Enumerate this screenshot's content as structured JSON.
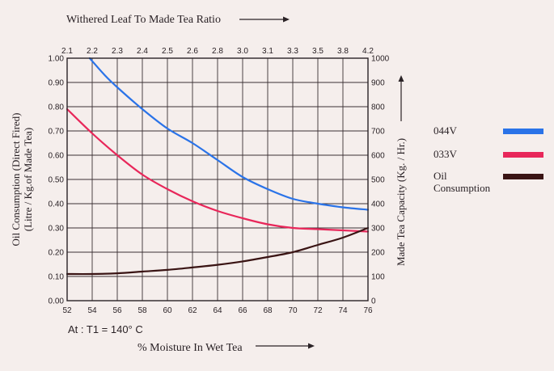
{
  "chart_data": {
    "type": "line",
    "top_axis": {
      "title": "Withered Leaf To Made Tea Ratio",
      "ticks": [
        "2.1",
        "2.2",
        "2.3",
        "2.4",
        "2.5",
        "2.6",
        "2.8",
        "3.0",
        "3.1",
        "3.3",
        "3.5",
        "3.8",
        "4.2"
      ]
    },
    "x_axis": {
      "title": "% Moisture In Wet Tea",
      "range": [
        52,
        76
      ],
      "ticks": [
        "52",
        "54",
        "56",
        "58",
        "60",
        "62",
        "64",
        "66",
        "68",
        "70",
        "72",
        "74",
        "76"
      ]
    },
    "y_left": {
      "title_line1": "Oil Consumption (Direct Fired)",
      "title_line2": "(Litre / Kg.of Made Tea)",
      "range": [
        0,
        1
      ],
      "ticks": [
        "0.00",
        "0.10",
        "0.20",
        "0.30",
        "0.40",
        "0.50",
        "0.60",
        "0.70",
        "0.80",
        "0.90",
        "1.00"
      ]
    },
    "y_right": {
      "title": "Made Tea Capacity (Kg. / Hr.)",
      "range": [
        0,
        1000
      ],
      "ticks": [
        "0",
        "100",
        "200",
        "300",
        "400",
        "500",
        "600",
        "700",
        "800",
        "900",
        "1000"
      ]
    },
    "series": [
      {
        "name": "044V",
        "axis": "right",
        "color": "#2a73e8",
        "x": [
          53.8,
          55,
          56,
          58,
          60,
          62,
          64,
          66,
          68,
          70,
          72,
          74,
          76
        ],
        "y": [
          1000,
          930,
          880,
          790,
          710,
          650,
          580,
          510,
          460,
          420,
          400,
          385,
          375
        ]
      },
      {
        "name": "033V",
        "axis": "right",
        "color": "#e8275a",
        "x": [
          52,
          54,
          56,
          58,
          60,
          62,
          64,
          66,
          68,
          70,
          72,
          74,
          76
        ],
        "y": [
          790,
          690,
          600,
          520,
          460,
          410,
          370,
          340,
          315,
          300,
          295,
          290,
          285
        ]
      },
      {
        "name": "Oil Consumption",
        "axis": "left",
        "color": "#3a1414",
        "x": [
          52,
          54,
          56,
          58,
          60,
          62,
          64,
          66,
          68,
          70,
          72,
          74,
          76
        ],
        "y": [
          0.11,
          0.11,
          0.113,
          0.12,
          0.127,
          0.137,
          0.148,
          0.162,
          0.18,
          0.2,
          0.23,
          0.26,
          0.3
        ]
      }
    ],
    "legend": {
      "placement": "right",
      "entries": [
        {
          "label_line1": "044V",
          "label_line2": "",
          "color": "#2a73e8"
        },
        {
          "label_line1": "033V",
          "label_line2": "",
          "color": "#e8275a"
        },
        {
          "label_line1": "Oil",
          "label_line2": "Consumption",
          "color": "#3a1414"
        }
      ]
    },
    "note": "At : T1 = 140° C",
    "grid": true
  }
}
